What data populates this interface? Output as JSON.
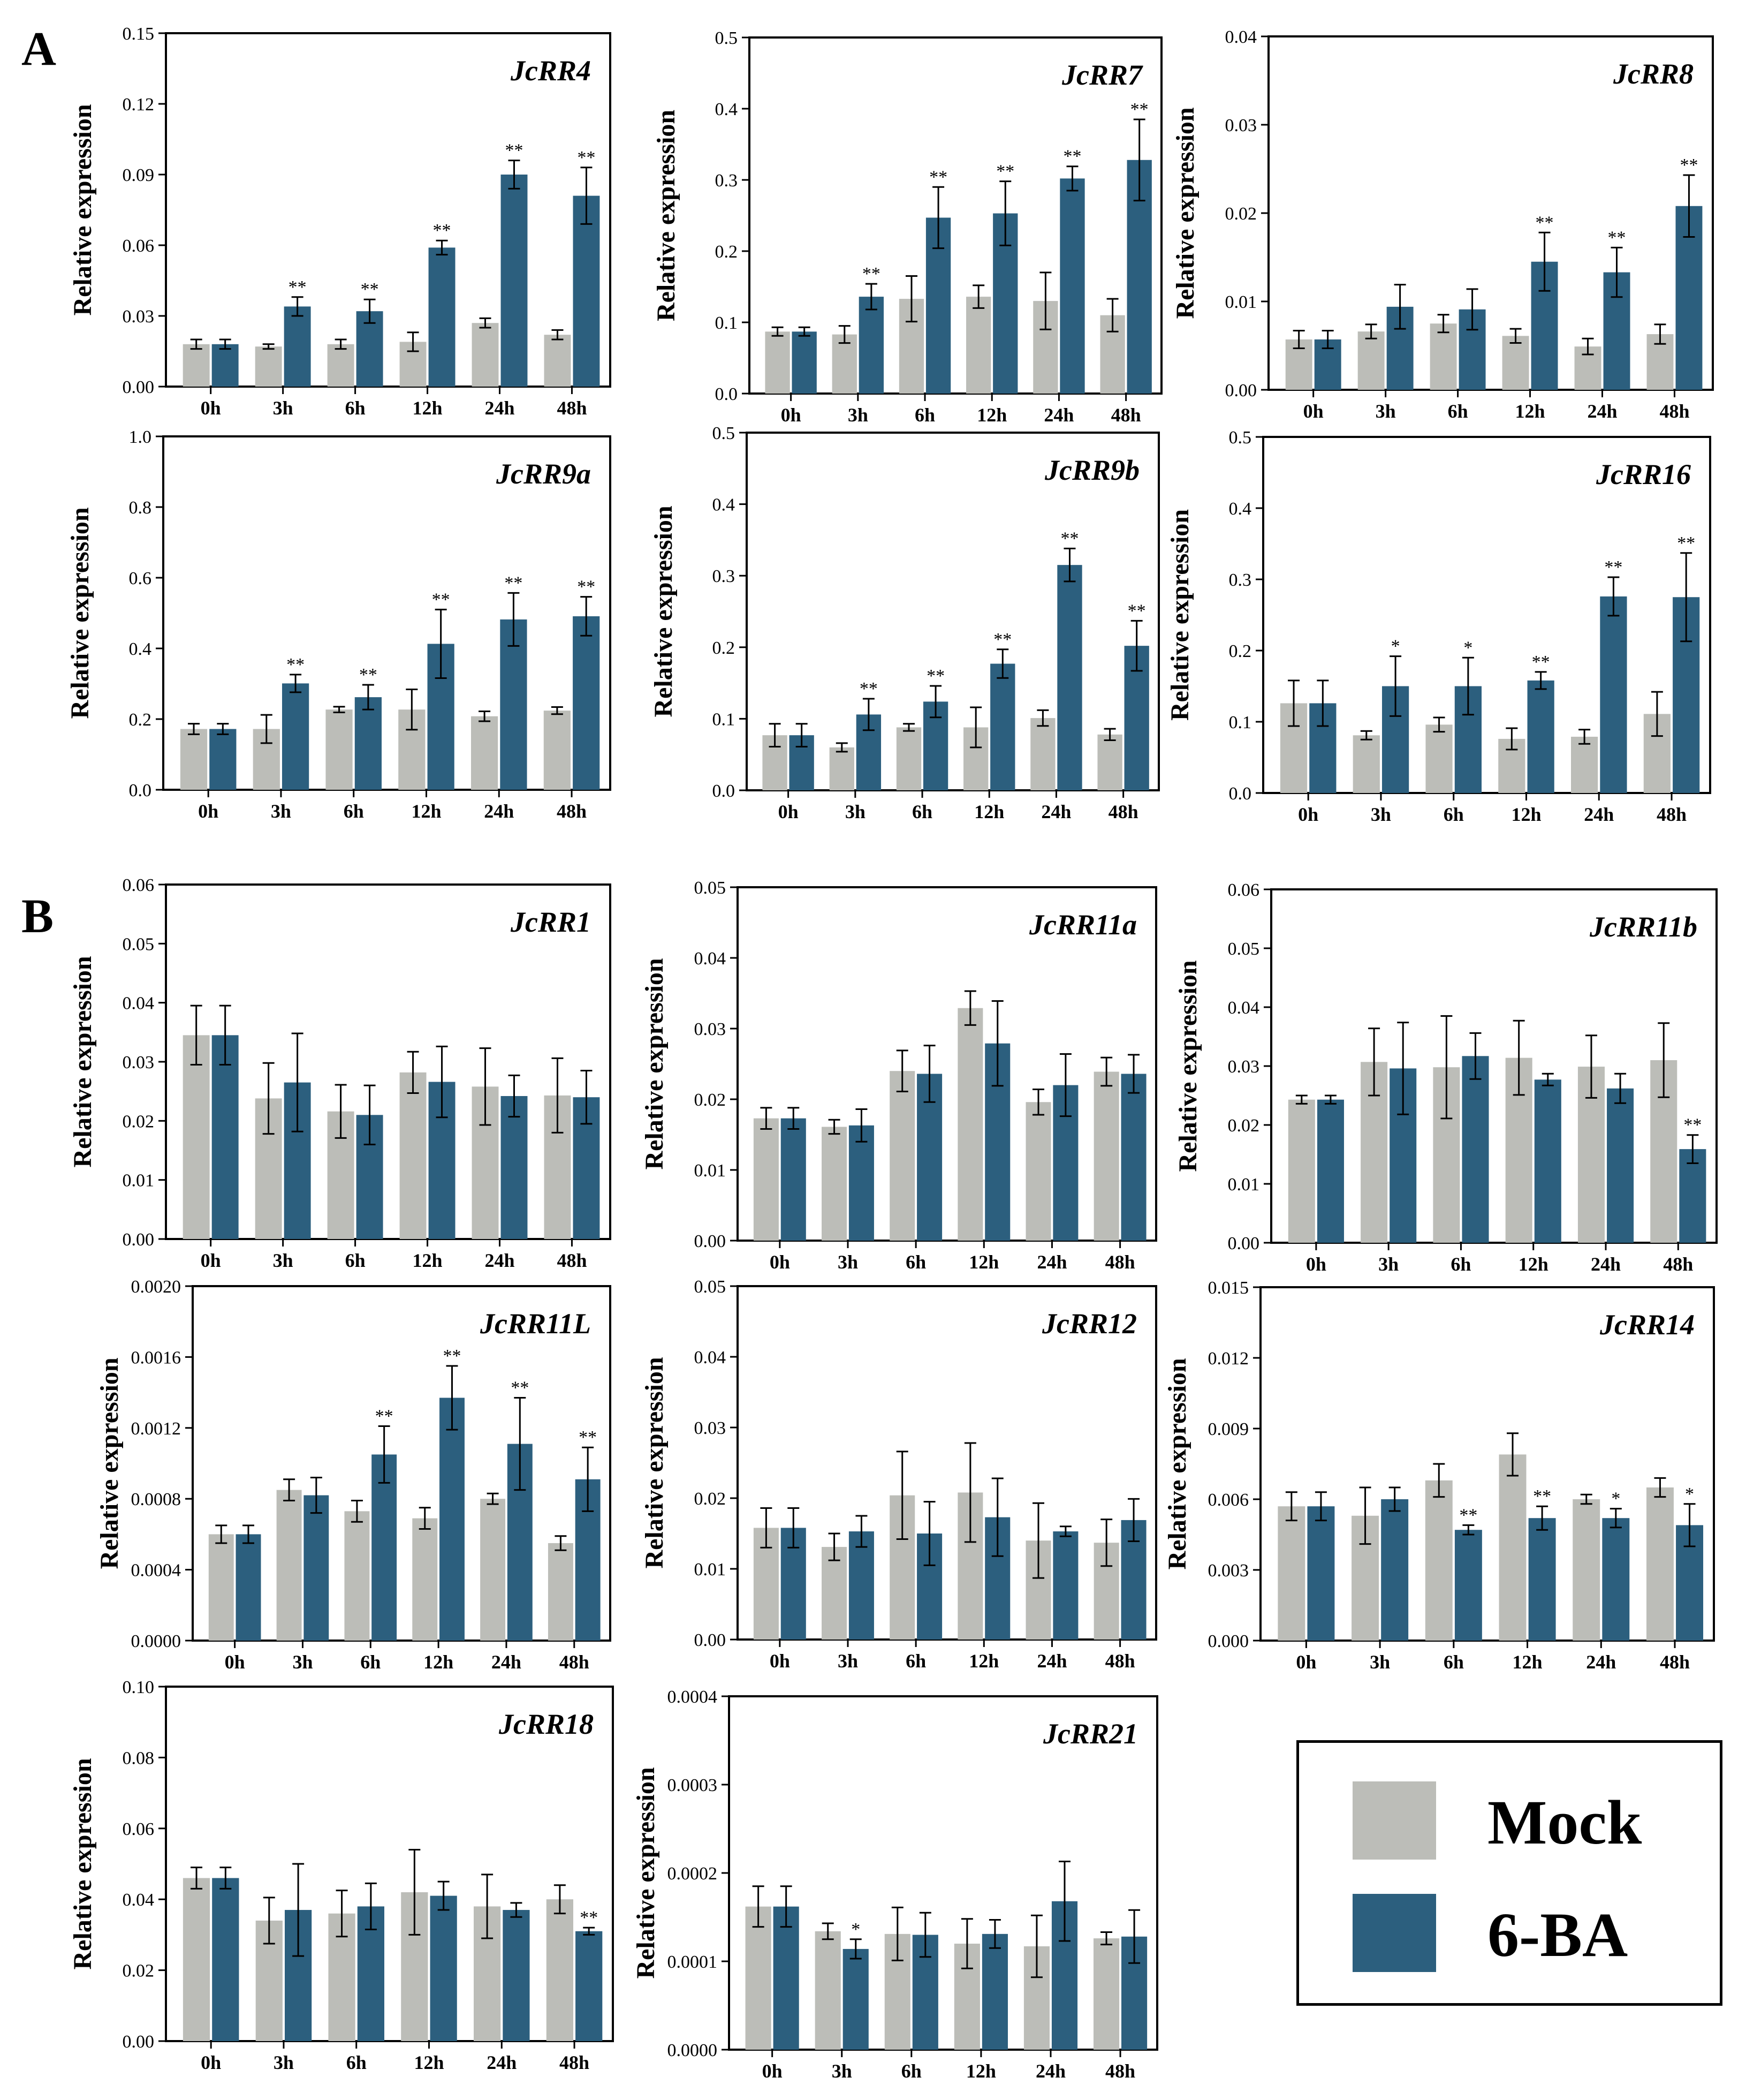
{
  "figure": {
    "panel_labels": {
      "a": "A",
      "b": "B"
    },
    "colors": {
      "mock": "#bcbdb8",
      "treated": "#2c5f7e",
      "axis": "#000000"
    },
    "legend": {
      "mock_label": "Mock",
      "treated_label": "6-BA"
    }
  },
  "chart_data": [
    {
      "type": "bar",
      "title": "JcRR4",
      "ylabel": "Relative expression",
      "xlabel": "",
      "categories": [
        "0h",
        "3h",
        "6h",
        "12h",
        "24h",
        "48h"
      ],
      "ylim": [
        0,
        0.15
      ],
      "yticks": [
        "0.00",
        "0.03",
        "0.06",
        "0.09",
        "0.12",
        "0.15"
      ],
      "series": [
        {
          "name": "Mock",
          "values": [
            0.018,
            0.017,
            0.018,
            0.019,
            0.027,
            0.022
          ],
          "errors": [
            0.002,
            0.001,
            0.002,
            0.004,
            0.002,
            0.002
          ]
        },
        {
          "name": "6-BA",
          "values": [
            0.018,
            0.034,
            0.032,
            0.059,
            0.09,
            0.081
          ],
          "errors": [
            0.002,
            0.004,
            0.005,
            0.003,
            0.006,
            0.012
          ]
        }
      ],
      "annotations": [
        "",
        "**",
        "**",
        "**",
        "**",
        "**"
      ]
    },
    {
      "type": "bar",
      "title": "JcRR7",
      "ylabel": "Relative expression",
      "xlabel": "",
      "categories": [
        "0h",
        "3h",
        "6h",
        "12h",
        "24h",
        "48h"
      ],
      "ylim": [
        0,
        0.5
      ],
      "yticks": [
        "0.0",
        "0.1",
        "0.2",
        "0.3",
        "0.4",
        "0.5"
      ],
      "series": [
        {
          "name": "Mock",
          "values": [
            0.087,
            0.083,
            0.133,
            0.136,
            0.13,
            0.11
          ],
          "errors": [
            0.006,
            0.012,
            0.032,
            0.016,
            0.04,
            0.023
          ]
        },
        {
          "name": "6-BA",
          "values": [
            0.087,
            0.136,
            0.247,
            0.253,
            0.302,
            0.328
          ],
          "errors": [
            0.006,
            0.018,
            0.043,
            0.045,
            0.017,
            0.057
          ]
        }
      ],
      "annotations": [
        "",
        "**",
        "**",
        "**",
        "**",
        "**"
      ]
    },
    {
      "type": "bar",
      "title": "JcRR8",
      "ylabel": "Relative expression",
      "xlabel": "",
      "categories": [
        "0h",
        "3h",
        "6h",
        "12h",
        "24h",
        "48h"
      ],
      "ylim": [
        0,
        0.04
      ],
      "yticks": [
        "0.00",
        "0.01",
        "0.02",
        "0.03",
        "0.04"
      ],
      "series": [
        {
          "name": "Mock",
          "values": [
            0.0057,
            0.0066,
            0.0075,
            0.0061,
            0.0049,
            0.0063
          ],
          "errors": [
            0.001,
            0.0008,
            0.001,
            0.0008,
            0.0009,
            0.0011
          ]
        },
        {
          "name": "6-BA",
          "values": [
            0.0057,
            0.0094,
            0.0091,
            0.0145,
            0.0133,
            0.0208
          ],
          "errors": [
            0.001,
            0.0025,
            0.0023,
            0.0033,
            0.0028,
            0.0035
          ]
        }
      ],
      "annotations": [
        "",
        "",
        "",
        "**",
        "**",
        "**"
      ]
    },
    {
      "type": "bar",
      "title": "JcRR9a",
      "ylabel": "Relative expression",
      "xlabel": "",
      "categories": [
        "0h",
        "3h",
        "6h",
        "12h",
        "24h",
        "48h"
      ],
      "ylim": [
        0,
        1.0
      ],
      "yticks": [
        "0.0",
        "0.2",
        "0.4",
        "0.6",
        "0.8",
        "1.0"
      ],
      "series": [
        {
          "name": "Mock",
          "values": [
            0.172,
            0.172,
            0.227,
            0.227,
            0.208,
            0.224
          ],
          "errors": [
            0.015,
            0.04,
            0.008,
            0.057,
            0.014,
            0.01
          ]
        },
        {
          "name": "6-BA",
          "values": [
            0.172,
            0.301,
            0.262,
            0.413,
            0.482,
            0.491
          ],
          "errors": [
            0.015,
            0.025,
            0.035,
            0.097,
            0.075,
            0.055
          ]
        }
      ],
      "annotations": [
        "",
        "**",
        "**",
        "**",
        "**",
        "**"
      ]
    },
    {
      "type": "bar",
      "title": "JcRR9b",
      "ylabel": "Relative expression",
      "xlabel": "",
      "categories": [
        "0h",
        "3h",
        "6h",
        "12h",
        "24h",
        "48h"
      ],
      "ylim": [
        0,
        0.5
      ],
      "yticks": [
        "0.0",
        "0.1",
        "0.2",
        "0.3",
        "0.4",
        "0.5"
      ],
      "series": [
        {
          "name": "Mock",
          "values": [
            0.077,
            0.06,
            0.088,
            0.088,
            0.101,
            0.078
          ],
          "errors": [
            0.016,
            0.006,
            0.005,
            0.028,
            0.011,
            0.008
          ]
        },
        {
          "name": "6-BA",
          "values": [
            0.077,
            0.106,
            0.124,
            0.177,
            0.315,
            0.202
          ],
          "errors": [
            0.016,
            0.022,
            0.022,
            0.02,
            0.023,
            0.035
          ]
        }
      ],
      "annotations": [
        "",
        "**",
        "**",
        "**",
        "**",
        "**"
      ]
    },
    {
      "type": "bar",
      "title": "JcRR16",
      "ylabel": "Relative expression",
      "xlabel": "",
      "categories": [
        "0h",
        "3h",
        "6h",
        "12h",
        "24h",
        "48h"
      ],
      "ylim": [
        0,
        0.5
      ],
      "yticks": [
        "0.0",
        "0.1",
        "0.2",
        "0.3",
        "0.4",
        "0.5"
      ],
      "series": [
        {
          "name": "Mock",
          "values": [
            0.126,
            0.081,
            0.096,
            0.076,
            0.079,
            0.111
          ],
          "errors": [
            0.032,
            0.006,
            0.01,
            0.015,
            0.01,
            0.031
          ]
        },
        {
          "name": "6-BA",
          "values": [
            0.126,
            0.15,
            0.15,
            0.158,
            0.276,
            0.275
          ],
          "errors": [
            0.032,
            0.042,
            0.04,
            0.012,
            0.027,
            0.062
          ]
        }
      ],
      "annotations": [
        "",
        "*",
        "*",
        "**",
        "**",
        "**"
      ]
    },
    {
      "type": "bar",
      "title": "JcRR1",
      "ylabel": "Relative expression",
      "xlabel": "",
      "categories": [
        "0h",
        "3h",
        "6h",
        "12h",
        "24h",
        "48h"
      ],
      "ylim": [
        0,
        0.06
      ],
      "yticks": [
        "0.00",
        "0.01",
        "0.02",
        "0.03",
        "0.04",
        "0.05",
        "0.06"
      ],
      "series": [
        {
          "name": "Mock",
          "values": [
            0.0345,
            0.0238,
            0.0216,
            0.0282,
            0.0258,
            0.0243
          ],
          "errors": [
            0.005,
            0.006,
            0.0045,
            0.0035,
            0.0065,
            0.0063
          ]
        },
        {
          "name": "6-BA",
          "values": [
            0.0345,
            0.0265,
            0.021,
            0.0266,
            0.0242,
            0.024
          ],
          "errors": [
            0.005,
            0.0083,
            0.005,
            0.006,
            0.0035,
            0.0045
          ]
        }
      ],
      "annotations": [
        "",
        "",
        "",
        "",
        "",
        ""
      ]
    },
    {
      "type": "bar",
      "title": "JcRR11a",
      "ylabel": "Relative expression",
      "xlabel": "",
      "categories": [
        "0h",
        "3h",
        "6h",
        "12h",
        "24h",
        "48h"
      ],
      "ylim": [
        0,
        0.05
      ],
      "yticks": [
        "0.00",
        "0.01",
        "0.02",
        "0.03",
        "0.04",
        "0.05"
      ],
      "series": [
        {
          "name": "Mock",
          "values": [
            0.0173,
            0.0161,
            0.024,
            0.0329,
            0.0196,
            0.0239
          ],
          "errors": [
            0.0015,
            0.001,
            0.0029,
            0.0024,
            0.0018,
            0.002
          ]
        },
        {
          "name": "6-BA",
          "values": [
            0.0173,
            0.0163,
            0.0236,
            0.0279,
            0.022,
            0.0236
          ],
          "errors": [
            0.0015,
            0.0023,
            0.004,
            0.006,
            0.0044,
            0.0027
          ]
        }
      ],
      "annotations": [
        "",
        "",
        "",
        "",
        "",
        ""
      ]
    },
    {
      "type": "bar",
      "title": "JcRR11b",
      "ylabel": "Relative expression",
      "xlabel": "",
      "categories": [
        "0h",
        "3h",
        "6h",
        "12h",
        "24h",
        "48h"
      ],
      "ylim": [
        0,
        0.06
      ],
      "yticks": [
        "0.00",
        "0.01",
        "0.02",
        "0.03",
        "0.04",
        "0.05",
        "0.06"
      ],
      "series": [
        {
          "name": "Mock",
          "values": [
            0.0243,
            0.0307,
            0.0298,
            0.0314,
            0.0299,
            0.031
          ],
          "errors": [
            0.0007,
            0.0057,
            0.0087,
            0.0063,
            0.0053,
            0.0063
          ]
        },
        {
          "name": "6-BA",
          "values": [
            0.0243,
            0.0296,
            0.0317,
            0.0277,
            0.0262,
            0.0159
          ],
          "errors": [
            0.0007,
            0.0078,
            0.0039,
            0.001,
            0.0025,
            0.0024
          ]
        }
      ],
      "annotations": [
        "",
        "",
        "",
        "",
        "",
        "**"
      ]
    },
    {
      "type": "bar",
      "title": "JcRR11L",
      "ylabel": "Relative expression",
      "xlabel": "",
      "categories": [
        "0h",
        "3h",
        "6h",
        "12h",
        "24h",
        "48h"
      ],
      "ylim": [
        0,
        0.002
      ],
      "yticks": [
        "0.0000",
        "0.0004",
        "0.0008",
        "0.0012",
        "0.0016",
        "0.0020"
      ],
      "series": [
        {
          "name": "Mock",
          "values": [
            0.0006,
            0.00085,
            0.00073,
            0.00069,
            0.0008,
            0.00055
          ],
          "errors": [
            5e-05,
            6e-05,
            6e-05,
            6e-05,
            3e-05,
            4e-05
          ]
        },
        {
          "name": "6-BA",
          "values": [
            0.0006,
            0.00082,
            0.00105,
            0.00137,
            0.00111,
            0.00091
          ],
          "errors": [
            5e-05,
            0.0001,
            0.00016,
            0.00018,
            0.00026,
            0.00018
          ]
        }
      ],
      "annotations": [
        "",
        "",
        "**",
        "**",
        "**",
        "**"
      ]
    },
    {
      "type": "bar",
      "title": "JcRR12",
      "ylabel": "Relative expression",
      "xlabel": "",
      "categories": [
        "0h",
        "3h",
        "6h",
        "12h",
        "24h",
        "48h"
      ],
      "ylim": [
        0,
        0.05
      ],
      "yticks": [
        "0.00",
        "0.01",
        "0.02",
        "0.03",
        "0.04",
        "0.05"
      ],
      "series": [
        {
          "name": "Mock",
          "values": [
            0.0158,
            0.0131,
            0.0204,
            0.0208,
            0.014,
            0.0137
          ],
          "errors": [
            0.0028,
            0.0019,
            0.0062,
            0.007,
            0.0053,
            0.0033
          ]
        },
        {
          "name": "6-BA",
          "values": [
            0.0158,
            0.0153,
            0.015,
            0.0173,
            0.0153,
            0.0169
          ],
          "errors": [
            0.0028,
            0.0022,
            0.0045,
            0.0055,
            0.0007,
            0.003
          ]
        }
      ],
      "annotations": [
        "",
        "",
        "",
        "",
        "",
        ""
      ]
    },
    {
      "type": "bar",
      "title": "JcRR14",
      "ylabel": "Relative expression",
      "xlabel": "",
      "categories": [
        "0h",
        "3h",
        "6h",
        "12h",
        "24h",
        "48h"
      ],
      "ylim": [
        0,
        0.015
      ],
      "yticks": [
        "0.000",
        "0.003",
        "0.006",
        "0.009",
        "0.012",
        "0.015"
      ],
      "series": [
        {
          "name": "Mock",
          "values": [
            0.0057,
            0.0053,
            0.0068,
            0.0079,
            0.006,
            0.0065
          ],
          "errors": [
            0.0006,
            0.0012,
            0.0007,
            0.0009,
            0.0002,
            0.0004
          ]
        },
        {
          "name": "6-BA",
          "values": [
            0.0057,
            0.006,
            0.0047,
            0.0052,
            0.0052,
            0.0049
          ],
          "errors": [
            0.0006,
            0.0005,
            0.0002,
            0.0005,
            0.0004,
            0.0009
          ]
        }
      ],
      "annotations": [
        "",
        "",
        "**",
        "**",
        "*",
        "*"
      ]
    },
    {
      "type": "bar",
      "title": "JcRR18",
      "ylabel": "Relative expression",
      "xlabel": "",
      "categories": [
        "0h",
        "3h",
        "6h",
        "12h",
        "24h",
        "48h"
      ],
      "ylim": [
        0,
        0.1
      ],
      "yticks": [
        "0.00",
        "0.02",
        "0.04",
        "0.06",
        "0.08",
        "0.10"
      ],
      "series": [
        {
          "name": "Mock",
          "values": [
            0.046,
            0.034,
            0.036,
            0.042,
            0.038,
            0.04
          ],
          "errors": [
            0.003,
            0.0065,
            0.0065,
            0.012,
            0.009,
            0.004
          ]
        },
        {
          "name": "6-BA",
          "values": [
            0.046,
            0.037,
            0.038,
            0.041,
            0.037,
            0.031
          ],
          "errors": [
            0.003,
            0.013,
            0.0065,
            0.004,
            0.002,
            0.001
          ]
        }
      ],
      "annotations": [
        "",
        "",
        "",
        "",
        "",
        "**"
      ]
    },
    {
      "type": "bar",
      "title": "JcRR21",
      "ylabel": "Relative expression",
      "xlabel": "",
      "categories": [
        "0h",
        "3h",
        "6h",
        "12h",
        "24h",
        "48h"
      ],
      "ylim": [
        0,
        0.0004
      ],
      "yticks": [
        "0.0000",
        "0.0001",
        "0.0002",
        "0.0003",
        "0.0004"
      ],
      "series": [
        {
          "name": "Mock",
          "values": [
            0.000162,
            0.000134,
            0.000131,
            0.00012,
            0.000117,
            0.000126
          ],
          "errors": [
            2.3e-05,
            9e-06,
            3e-05,
            2.8e-05,
            3.5e-05,
            7e-06
          ]
        },
        {
          "name": "6-BA",
          "values": [
            0.000162,
            0.000114,
            0.00013,
            0.000131,
            0.000168,
            0.000128
          ],
          "errors": [
            2.3e-05,
            1.1e-05,
            2.5e-05,
            1.6e-05,
            4.5e-05,
            3e-05
          ]
        }
      ],
      "annotations": [
        "",
        "*",
        "",
        "",
        "",
        ""
      ]
    }
  ]
}
